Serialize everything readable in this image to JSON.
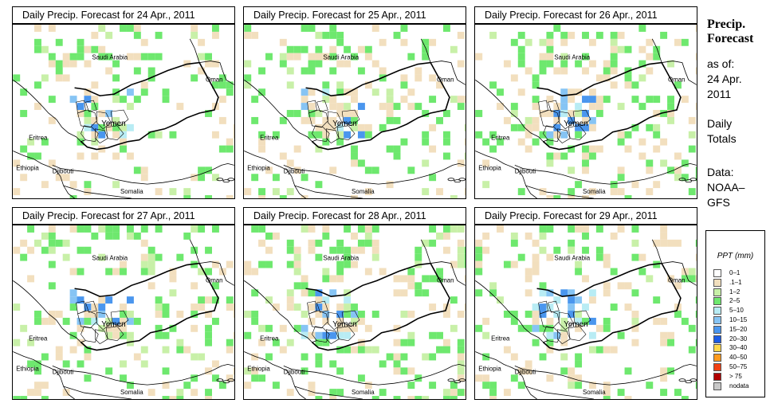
{
  "panels": [
    {
      "title": "Daily Precip. Forecast for  24 Apr., 2011",
      "seed": 11,
      "density": 0.45
    },
    {
      "title": "Daily Precip. Forecast for  25 Apr., 2011",
      "seed": 23,
      "density": 0.55
    },
    {
      "title": "Daily Precip. Forecast for  26 Apr., 2011",
      "seed": 37,
      "density": 0.6
    },
    {
      "title": "Daily Precip. Forecast for  27 Apr., 2011",
      "seed": 41,
      "density": 0.6
    },
    {
      "title": "Daily Precip. Forecast for  28 Apr., 2011",
      "seed": 53,
      "density": 0.7
    },
    {
      "title": "Daily Precip. Forecast for  29 Apr., 2011",
      "seed": 67,
      "density": 0.5
    }
  ],
  "map_labels": {
    "saudi": "Saudi Arabia",
    "oman": "Oman",
    "yemen": "Yemen",
    "eritrea": "Eritrea",
    "ethiopia": "Ethiopia",
    "djibouti": "Djibouti",
    "somalia": "Somalia"
  },
  "side": {
    "title_line1": "Precip.",
    "title_line2": "Forecast",
    "asof_1": "as of:",
    "asof_2": "24 Apr.",
    "asof_3": "2011",
    "daily_1": "Daily",
    "daily_2": "Totals",
    "data_1": "Data:",
    "data_2": "NOAA–",
    "data_3": "GFS"
  },
  "legend": {
    "title": "PPT (mm)",
    "items": [
      {
        "label": "0–1",
        "color": "#ffffff"
      },
      {
        "label": ".1–1",
        "color": "#f2dfbe"
      },
      {
        "label": "1–2",
        "color": "#c8f0a8"
      },
      {
        "label": "2–5",
        "color": "#6ee86e"
      },
      {
        "label": "5–10",
        "color": "#b8ecf4"
      },
      {
        "label": "10–15",
        "color": "#86c4f4"
      },
      {
        "label": "15–20",
        "color": "#4a96ee"
      },
      {
        "label": "20–30",
        "color": "#1c5ce6"
      },
      {
        "label": "30–40",
        "color": "#ffd84a"
      },
      {
        "label": "40–50",
        "color": "#ff9a1e"
      },
      {
        "label": "50–75",
        "color": "#f04014"
      },
      {
        "label": "> 75",
        "color": "#b00000"
      },
      {
        "label": "nodata",
        "color": "#c8c8c8"
      }
    ]
  }
}
